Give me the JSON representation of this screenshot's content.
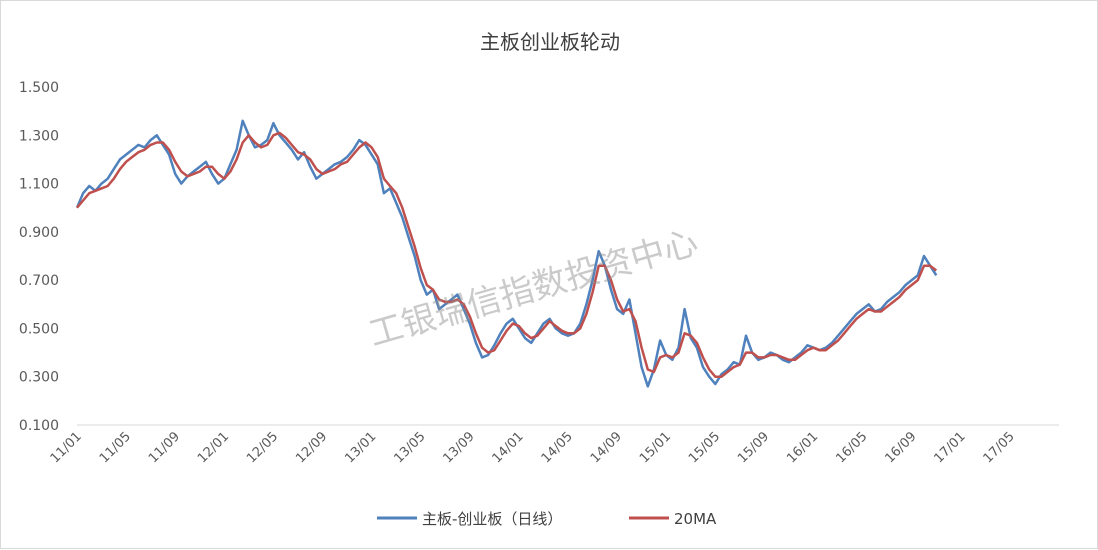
{
  "chart_data": {
    "type": "line",
    "title": "主板创业板轮动",
    "ylim": [
      0.1,
      1.5
    ],
    "y_ticks": [
      "1.500",
      "1.300",
      "1.100",
      "0.900",
      "0.700",
      "0.500",
      "0.300",
      "0.100"
    ],
    "x_tick_labels": [
      "11/01",
      "11/05",
      "11/09",
      "12/01",
      "12/05",
      "12/09",
      "13/01",
      "13/05",
      "13/09",
      "14/01",
      "14/05",
      "14/09",
      "15/01",
      "15/05",
      "15/09",
      "16/01",
      "16/05",
      "16/09",
      "17/01",
      "17/05"
    ],
    "x_range_months": [
      0,
      80
    ],
    "grid": false,
    "legend_position": "bottom",
    "series": [
      {
        "name": "主板-创业板（日线）",
        "color": "#4f81bd",
        "points": [
          [
            0.0,
            1.0
          ],
          [
            0.5,
            1.06
          ],
          [
            1.0,
            1.09
          ],
          [
            1.5,
            1.07
          ],
          [
            2.0,
            1.1
          ],
          [
            2.5,
            1.12
          ],
          [
            3.0,
            1.16
          ],
          [
            3.5,
            1.2
          ],
          [
            4.0,
            1.22
          ],
          [
            4.5,
            1.24
          ],
          [
            5.0,
            1.26
          ],
          [
            5.5,
            1.25
          ],
          [
            6.0,
            1.28
          ],
          [
            6.5,
            1.3
          ],
          [
            7.0,
            1.26
          ],
          [
            7.5,
            1.22
          ],
          [
            8.0,
            1.14
          ],
          [
            8.5,
            1.1
          ],
          [
            9.0,
            1.13
          ],
          [
            9.5,
            1.15
          ],
          [
            10.0,
            1.17
          ],
          [
            10.5,
            1.19
          ],
          [
            11.0,
            1.14
          ],
          [
            11.5,
            1.1
          ],
          [
            12.0,
            1.12
          ],
          [
            12.5,
            1.18
          ],
          [
            13.0,
            1.24
          ],
          [
            13.5,
            1.36
          ],
          [
            14.0,
            1.3
          ],
          [
            14.5,
            1.25
          ],
          [
            15.0,
            1.26
          ],
          [
            15.5,
            1.28
          ],
          [
            16.0,
            1.35
          ],
          [
            16.5,
            1.3
          ],
          [
            17.0,
            1.27
          ],
          [
            17.5,
            1.24
          ],
          [
            18.0,
            1.2
          ],
          [
            18.5,
            1.23
          ],
          [
            19.0,
            1.17
          ],
          [
            19.5,
            1.12
          ],
          [
            20.0,
            1.14
          ],
          [
            20.5,
            1.16
          ],
          [
            21.0,
            1.18
          ],
          [
            21.5,
            1.19
          ],
          [
            22.0,
            1.21
          ],
          [
            22.5,
            1.24
          ],
          [
            23.0,
            1.28
          ],
          [
            23.5,
            1.26
          ],
          [
            24.0,
            1.22
          ],
          [
            24.5,
            1.18
          ],
          [
            25.0,
            1.06
          ],
          [
            25.5,
            1.08
          ],
          [
            26.0,
            1.02
          ],
          [
            26.5,
            0.96
          ],
          [
            27.0,
            0.88
          ],
          [
            27.5,
            0.8
          ],
          [
            28.0,
            0.7
          ],
          [
            28.5,
            0.64
          ],
          [
            29.0,
            0.66
          ],
          [
            29.5,
            0.58
          ],
          [
            30.0,
            0.6
          ],
          [
            30.5,
            0.62
          ],
          [
            31.0,
            0.64
          ],
          [
            31.5,
            0.58
          ],
          [
            32.0,
            0.52
          ],
          [
            32.5,
            0.44
          ],
          [
            33.0,
            0.38
          ],
          [
            33.5,
            0.39
          ],
          [
            34.0,
            0.43
          ],
          [
            34.5,
            0.48
          ],
          [
            35.0,
            0.52
          ],
          [
            35.5,
            0.54
          ],
          [
            36.0,
            0.5
          ],
          [
            36.5,
            0.46
          ],
          [
            37.0,
            0.44
          ],
          [
            37.5,
            0.48
          ],
          [
            38.0,
            0.52
          ],
          [
            38.5,
            0.54
          ],
          [
            39.0,
            0.5
          ],
          [
            39.5,
            0.48
          ],
          [
            40.0,
            0.47
          ],
          [
            40.5,
            0.48
          ],
          [
            41.0,
            0.52
          ],
          [
            41.5,
            0.6
          ],
          [
            42.0,
            0.7
          ],
          [
            42.5,
            0.82
          ],
          [
            43.0,
            0.76
          ],
          [
            43.5,
            0.66
          ],
          [
            44.0,
            0.58
          ],
          [
            44.5,
            0.56
          ],
          [
            45.0,
            0.62
          ],
          [
            45.5,
            0.48
          ],
          [
            46.0,
            0.34
          ],
          [
            46.5,
            0.26
          ],
          [
            47.0,
            0.33
          ],
          [
            47.5,
            0.45
          ],
          [
            48.0,
            0.39
          ],
          [
            48.5,
            0.37
          ],
          [
            49.0,
            0.42
          ],
          [
            49.5,
            0.58
          ],
          [
            50.0,
            0.46
          ],
          [
            50.5,
            0.42
          ],
          [
            51.0,
            0.34
          ],
          [
            51.5,
            0.3
          ],
          [
            52.0,
            0.27
          ],
          [
            52.5,
            0.31
          ],
          [
            53.0,
            0.33
          ],
          [
            53.5,
            0.36
          ],
          [
            54.0,
            0.35
          ],
          [
            54.5,
            0.47
          ],
          [
            55.0,
            0.4
          ],
          [
            55.5,
            0.37
          ],
          [
            56.0,
            0.38
          ],
          [
            56.5,
            0.4
          ],
          [
            57.0,
            0.39
          ],
          [
            57.5,
            0.37
          ],
          [
            58.0,
            0.36
          ],
          [
            58.5,
            0.38
          ],
          [
            59.0,
            0.4
          ],
          [
            59.5,
            0.43
          ],
          [
            60.0,
            0.42
          ],
          [
            60.5,
            0.41
          ],
          [
            61.0,
            0.42
          ],
          [
            61.5,
            0.44
          ],
          [
            62.0,
            0.47
          ],
          [
            62.5,
            0.5
          ],
          [
            63.0,
            0.53
          ],
          [
            63.5,
            0.56
          ],
          [
            64.0,
            0.58
          ],
          [
            64.5,
            0.6
          ],
          [
            65.0,
            0.57
          ],
          [
            65.5,
            0.58
          ],
          [
            66.0,
            0.61
          ],
          [
            66.5,
            0.63
          ],
          [
            67.0,
            0.65
          ],
          [
            67.5,
            0.68
          ],
          [
            68.0,
            0.7
          ],
          [
            68.5,
            0.72
          ],
          [
            69.0,
            0.8
          ],
          [
            69.5,
            0.76
          ],
          [
            70.0,
            0.72
          ]
        ]
      },
      {
        "name": "20MA",
        "color": "#c0504d",
        "points": [
          [
            0.0,
            1.0
          ],
          [
            0.5,
            1.03
          ],
          [
            1.0,
            1.06
          ],
          [
            1.5,
            1.07
          ],
          [
            2.0,
            1.08
          ],
          [
            2.5,
            1.09
          ],
          [
            3.0,
            1.12
          ],
          [
            3.5,
            1.16
          ],
          [
            4.0,
            1.19
          ],
          [
            4.5,
            1.21
          ],
          [
            5.0,
            1.23
          ],
          [
            5.5,
            1.24
          ],
          [
            6.0,
            1.26
          ],
          [
            6.5,
            1.27
          ],
          [
            7.0,
            1.27
          ],
          [
            7.5,
            1.24
          ],
          [
            8.0,
            1.19
          ],
          [
            8.5,
            1.15
          ],
          [
            9.0,
            1.13
          ],
          [
            9.5,
            1.14
          ],
          [
            10.0,
            1.15
          ],
          [
            10.5,
            1.17
          ],
          [
            11.0,
            1.17
          ],
          [
            11.5,
            1.14
          ],
          [
            12.0,
            1.12
          ],
          [
            12.5,
            1.15
          ],
          [
            13.0,
            1.2
          ],
          [
            13.5,
            1.27
          ],
          [
            14.0,
            1.3
          ],
          [
            14.5,
            1.27
          ],
          [
            15.0,
            1.25
          ],
          [
            15.5,
            1.26
          ],
          [
            16.0,
            1.3
          ],
          [
            16.5,
            1.31
          ],
          [
            17.0,
            1.29
          ],
          [
            17.5,
            1.26
          ],
          [
            18.0,
            1.23
          ],
          [
            18.5,
            1.22
          ],
          [
            19.0,
            1.2
          ],
          [
            19.5,
            1.16
          ],
          [
            20.0,
            1.14
          ],
          [
            20.5,
            1.15
          ],
          [
            21.0,
            1.16
          ],
          [
            21.5,
            1.18
          ],
          [
            22.0,
            1.19
          ],
          [
            22.5,
            1.22
          ],
          [
            23.0,
            1.25
          ],
          [
            23.5,
            1.27
          ],
          [
            24.0,
            1.25
          ],
          [
            24.5,
            1.21
          ],
          [
            25.0,
            1.12
          ],
          [
            25.5,
            1.09
          ],
          [
            26.0,
            1.06
          ],
          [
            26.5,
            1.0
          ],
          [
            27.0,
            0.92
          ],
          [
            27.5,
            0.84
          ],
          [
            28.0,
            0.75
          ],
          [
            28.5,
            0.68
          ],
          [
            29.0,
            0.66
          ],
          [
            29.5,
            0.62
          ],
          [
            30.0,
            0.61
          ],
          [
            30.5,
            0.61
          ],
          [
            31.0,
            0.62
          ],
          [
            31.5,
            0.6
          ],
          [
            32.0,
            0.55
          ],
          [
            32.5,
            0.48
          ],
          [
            33.0,
            0.42
          ],
          [
            33.5,
            0.4
          ],
          [
            34.0,
            0.41
          ],
          [
            34.5,
            0.45
          ],
          [
            35.0,
            0.49
          ],
          [
            35.5,
            0.52
          ],
          [
            36.0,
            0.51
          ],
          [
            36.5,
            0.48
          ],
          [
            37.0,
            0.46
          ],
          [
            37.5,
            0.47
          ],
          [
            38.0,
            0.5
          ],
          [
            38.5,
            0.53
          ],
          [
            39.0,
            0.51
          ],
          [
            39.5,
            0.49
          ],
          [
            40.0,
            0.48
          ],
          [
            40.5,
            0.48
          ],
          [
            41.0,
            0.5
          ],
          [
            41.5,
            0.56
          ],
          [
            42.0,
            0.65
          ],
          [
            42.5,
            0.76
          ],
          [
            43.0,
            0.76
          ],
          [
            43.5,
            0.7
          ],
          [
            44.0,
            0.62
          ],
          [
            44.5,
            0.57
          ],
          [
            45.0,
            0.58
          ],
          [
            45.5,
            0.53
          ],
          [
            46.0,
            0.42
          ],
          [
            46.5,
            0.33
          ],
          [
            47.0,
            0.32
          ],
          [
            47.5,
            0.38
          ],
          [
            48.0,
            0.39
          ],
          [
            48.5,
            0.38
          ],
          [
            49.0,
            0.4
          ],
          [
            49.5,
            0.48
          ],
          [
            50.0,
            0.47
          ],
          [
            50.5,
            0.44
          ],
          [
            51.0,
            0.38
          ],
          [
            51.5,
            0.33
          ],
          [
            52.0,
            0.3
          ],
          [
            52.5,
            0.3
          ],
          [
            53.0,
            0.32
          ],
          [
            53.5,
            0.34
          ],
          [
            54.0,
            0.35
          ],
          [
            54.5,
            0.4
          ],
          [
            55.0,
            0.4
          ],
          [
            55.5,
            0.38
          ],
          [
            56.0,
            0.38
          ],
          [
            56.5,
            0.39
          ],
          [
            57.0,
            0.39
          ],
          [
            57.5,
            0.38
          ],
          [
            58.0,
            0.37
          ],
          [
            58.5,
            0.37
          ],
          [
            59.0,
            0.39
          ],
          [
            59.5,
            0.41
          ],
          [
            60.0,
            0.42
          ],
          [
            60.5,
            0.41
          ],
          [
            61.0,
            0.41
          ],
          [
            61.5,
            0.43
          ],
          [
            62.0,
            0.45
          ],
          [
            62.5,
            0.48
          ],
          [
            63.0,
            0.51
          ],
          [
            63.5,
            0.54
          ],
          [
            64.0,
            0.56
          ],
          [
            64.5,
            0.58
          ],
          [
            65.0,
            0.57
          ],
          [
            65.5,
            0.57
          ],
          [
            66.0,
            0.59
          ],
          [
            66.5,
            0.61
          ],
          [
            67.0,
            0.63
          ],
          [
            67.5,
            0.66
          ],
          [
            68.0,
            0.68
          ],
          [
            68.5,
            0.7
          ],
          [
            69.0,
            0.76
          ],
          [
            69.5,
            0.76
          ],
          [
            70.0,
            0.74
          ]
        ]
      }
    ]
  },
  "watermark": "工银瑞信指数投资中心",
  "legend": {
    "items": [
      {
        "label": "主板-创业板（日线）",
        "color": "#4f81bd"
      },
      {
        "label": "20MA",
        "color": "#c0504d"
      }
    ]
  }
}
